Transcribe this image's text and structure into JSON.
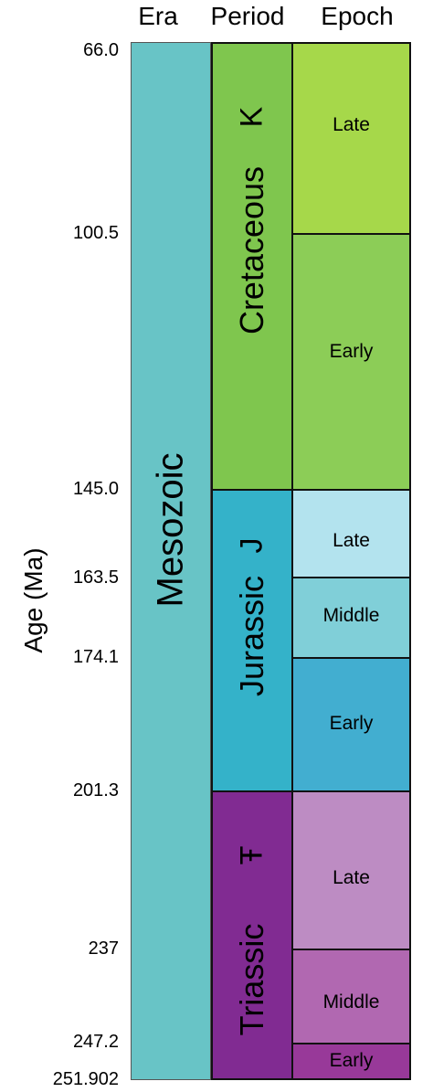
{
  "headers": {
    "era": "Era",
    "period": "Period",
    "epoch": "Epoch"
  },
  "axis_label": "Age (Ma)",
  "boundaries": [
    "66.0",
    "100.5",
    "145.0",
    "163.5",
    "174.1",
    "201.3",
    "237",
    "247.2",
    "251.902"
  ],
  "era": {
    "name": "Mesozoic",
    "color": "#68c4c6"
  },
  "periods": [
    {
      "name": "Cretaceous",
      "symbol": "K",
      "color": "#7fc64e"
    },
    {
      "name": "Jurassic",
      "symbol": "J",
      "color": "#34b2c9"
    },
    {
      "name": "Triassic",
      "symbol": "Ŧ",
      "color": "#812b92"
    }
  ],
  "epochs": [
    {
      "name": "Late",
      "period": "Cretaceous",
      "color": "#a6d84a"
    },
    {
      "name": "Early",
      "period": "Cretaceous",
      "color": "#8ccd57"
    },
    {
      "name": "Late",
      "period": "Jurassic",
      "color": "#b3e3ee"
    },
    {
      "name": "Middle",
      "period": "Jurassic",
      "color": "#80cfd8"
    },
    {
      "name": "Early",
      "period": "Jurassic",
      "color": "#42aed0"
    },
    {
      "name": "Late",
      "period": "Triassic",
      "color": "#bd8cc3"
    },
    {
      "name": "Middle",
      "period": "Triassic",
      "color": "#b168b1"
    },
    {
      "name": "Early",
      "period": "Triassic",
      "color": "#983999"
    }
  ]
}
